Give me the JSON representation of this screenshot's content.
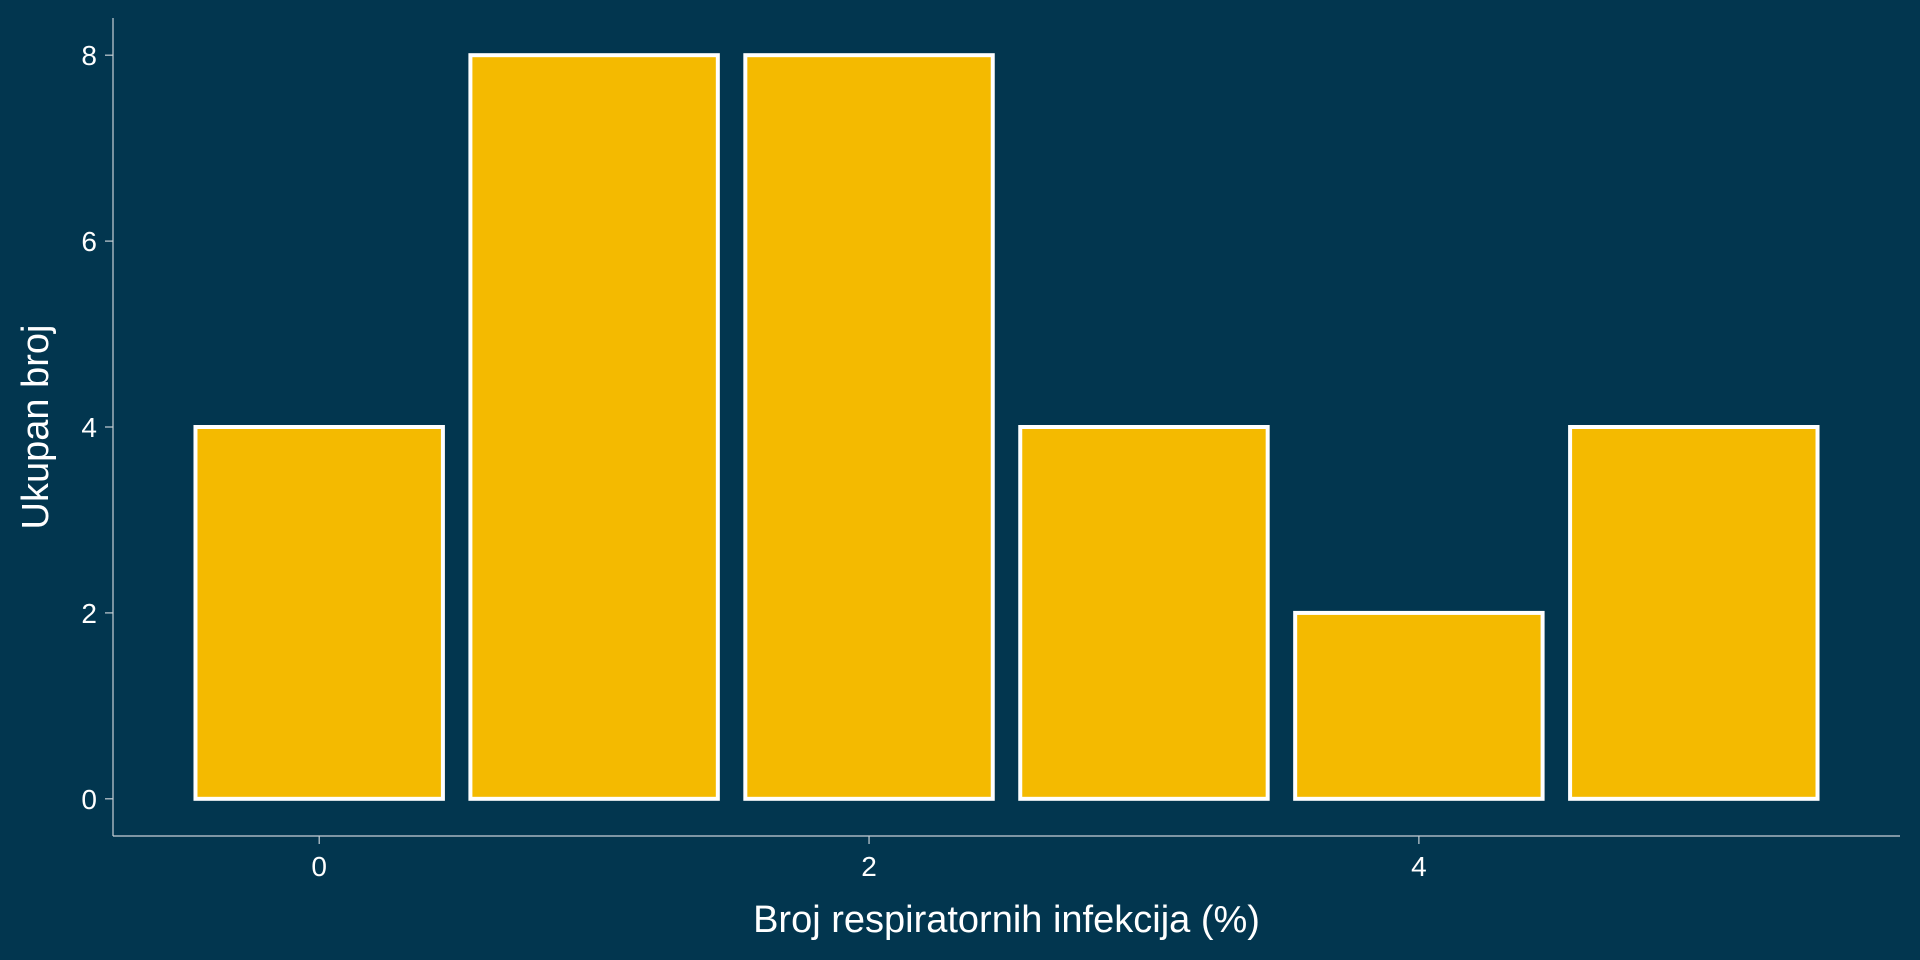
{
  "chart_data": {
    "type": "bar",
    "title": "",
    "xlabel": "Broj respiratornih infekcija (%)",
    "ylabel": "Ukupan broj",
    "categories": [
      0,
      1,
      2,
      3,
      4,
      5
    ],
    "values": [
      4,
      8,
      8,
      4,
      2,
      4
    ],
    "xlim": [
      -0.75,
      5.75
    ],
    "ylim": [
      -0.4,
      8.4
    ],
    "xticks": [
      0,
      2,
      4
    ],
    "xtick_labels": [
      "0",
      "2",
      "4"
    ],
    "yticks": [
      0,
      2,
      4,
      6,
      8
    ],
    "ytick_labels": [
      "0",
      "2",
      "4",
      "6",
      "8"
    ],
    "bar_width": 0.9,
    "grid": false,
    "legend": "none",
    "colors": {
      "background": "#02364f",
      "bar_fill": "#f4ba00",
      "bar_edge": "#ffffff",
      "axis": "#c8d0d6",
      "text": "#ffffff"
    }
  }
}
